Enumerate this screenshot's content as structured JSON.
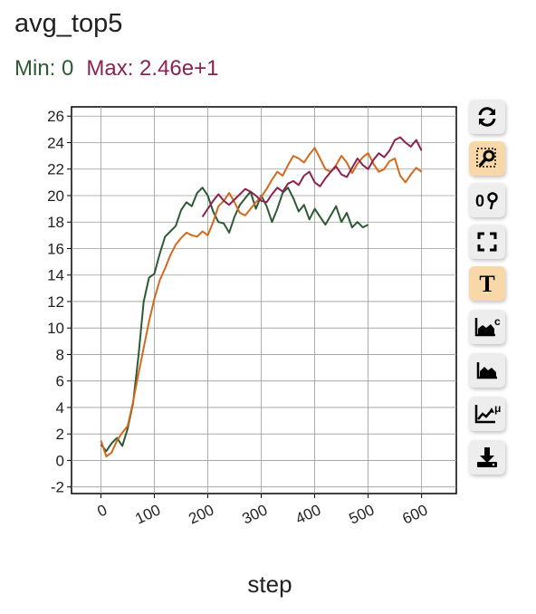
{
  "header": {
    "title": "avg_top5",
    "min_label": "Min: 0",
    "max_label": "Max: 2.46e+1"
  },
  "colors": {
    "min": "#2d5a32",
    "max": "#8c2250",
    "active_button": "#f8d8a8",
    "button": "#ededed"
  },
  "toolbar": {
    "buttons": [
      {
        "name": "refresh-icon",
        "active": false
      },
      {
        "name": "zoom-select-icon",
        "active": true
      },
      {
        "name": "zoom-reset-icon",
        "active": false
      },
      {
        "name": "fullscreen-icon",
        "active": false
      },
      {
        "name": "text-toggle-icon",
        "active": true,
        "glyph": "T"
      },
      {
        "name": "chart-smooth-icon",
        "active": false,
        "glyph": "c"
      },
      {
        "name": "area-chart-icon",
        "active": false
      },
      {
        "name": "chart-mean-icon",
        "active": false,
        "glyph": "μ"
      },
      {
        "name": "download-icon",
        "active": false
      }
    ]
  },
  "chart_data": {
    "type": "line",
    "title": "",
    "xlabel": "step",
    "ylabel": "",
    "xlim": [
      -55,
      665
    ],
    "ylim": [
      -2.5,
      26.7
    ],
    "xticks": [
      0,
      100,
      200,
      300,
      400,
      500,
      600
    ],
    "yticks": [
      -2,
      0,
      2,
      4,
      6,
      8,
      10,
      12,
      14,
      16,
      18,
      20,
      22,
      24,
      26
    ],
    "grid": true,
    "legend": "none",
    "series": [
      {
        "color": "#2d5a32",
        "x": [
          0,
          10,
          20,
          30,
          40,
          50,
          60,
          70,
          80,
          90,
          100,
          110,
          120,
          130,
          140,
          150,
          160,
          170,
          180,
          190,
          200,
          210,
          220,
          230,
          240,
          250,
          260,
          270,
          280,
          290,
          300,
          310,
          320,
          330,
          340,
          350,
          360,
          370,
          380,
          390,
          400,
          410,
          420,
          430,
          440,
          450,
          460,
          470,
          480,
          490,
          500
        ],
        "y": [
          1.2,
          0.7,
          1.3,
          1.7,
          1.1,
          2.4,
          4.3,
          7.8,
          12.0,
          13.8,
          14.1,
          15.6,
          16.9,
          17.3,
          17.7,
          18.9,
          19.5,
          19.2,
          20.2,
          20.6,
          20.0,
          18.8,
          18.0,
          17.9,
          17.2,
          18.4,
          19.3,
          19.8,
          20.3,
          19.0,
          20.0,
          19.2,
          18.0,
          19.0,
          20.2,
          20.6,
          19.8,
          18.8,
          19.3,
          18.2,
          19.0,
          18.4,
          17.8,
          18.5,
          19.2,
          18.0,
          18.7,
          17.6,
          18.0,
          17.6,
          17.8
        ]
      },
      {
        "color": "#d2691e",
        "x": [
          0,
          10,
          20,
          30,
          40,
          50,
          60,
          70,
          80,
          90,
          100,
          110,
          120,
          130,
          140,
          150,
          160,
          170,
          180,
          190,
          200,
          210,
          220,
          230,
          240,
          250,
          260,
          270,
          280,
          290,
          300,
          310,
          320,
          330,
          340,
          350,
          360,
          370,
          380,
          390,
          400,
          410,
          420,
          430,
          440,
          450,
          460,
          470,
          480,
          490,
          500,
          510,
          520,
          530,
          540,
          550,
          560,
          570,
          580,
          590,
          600
        ],
        "y": [
          1.5,
          0.3,
          0.6,
          1.5,
          2.1,
          2.6,
          4.4,
          6.5,
          8.5,
          10.5,
          12.2,
          13.6,
          14.5,
          15.5,
          16.3,
          16.8,
          17.2,
          17.0,
          16.9,
          17.3,
          17.0,
          18.0,
          19.2,
          19.6,
          20.2,
          19.5,
          18.7,
          18.5,
          19.0,
          19.5,
          19.9,
          20.5,
          21.2,
          21.8,
          21.5,
          22.3,
          23.0,
          22.8,
          22.5,
          23.1,
          23.6,
          22.8,
          22.0,
          21.8,
          22.3,
          23.0,
          22.5,
          21.7,
          22.4,
          22.9,
          23.2,
          22.4,
          21.8,
          22.0,
          22.6,
          22.8,
          21.5,
          21.0,
          21.6,
          22.1,
          21.8
        ]
      },
      {
        "color": "#8c2250",
        "x": [
          190,
          200,
          210,
          220,
          230,
          240,
          250,
          260,
          270,
          280,
          290,
          300,
          310,
          320,
          330,
          340,
          350,
          360,
          370,
          380,
          390,
          400,
          410,
          420,
          430,
          440,
          450,
          460,
          470,
          480,
          490,
          500,
          510,
          520,
          530,
          540,
          550,
          560,
          570,
          580,
          590,
          600
        ],
        "y": [
          18.4,
          19.0,
          19.6,
          20.1,
          19.6,
          19.3,
          19.7,
          20.1,
          20.5,
          20.3,
          20.0,
          19.6,
          19.5,
          20.1,
          20.6,
          20.3,
          20.9,
          21.1,
          20.8,
          21.5,
          21.8,
          21.0,
          20.7,
          21.3,
          21.8,
          22.2,
          21.6,
          21.4,
          22.1,
          22.8,
          22.3,
          22.0,
          22.7,
          23.2,
          22.9,
          23.4,
          24.2,
          24.4,
          24.0,
          23.7,
          24.2,
          23.4
        ]
      }
    ]
  },
  "axis": {
    "xlabel": "step"
  }
}
